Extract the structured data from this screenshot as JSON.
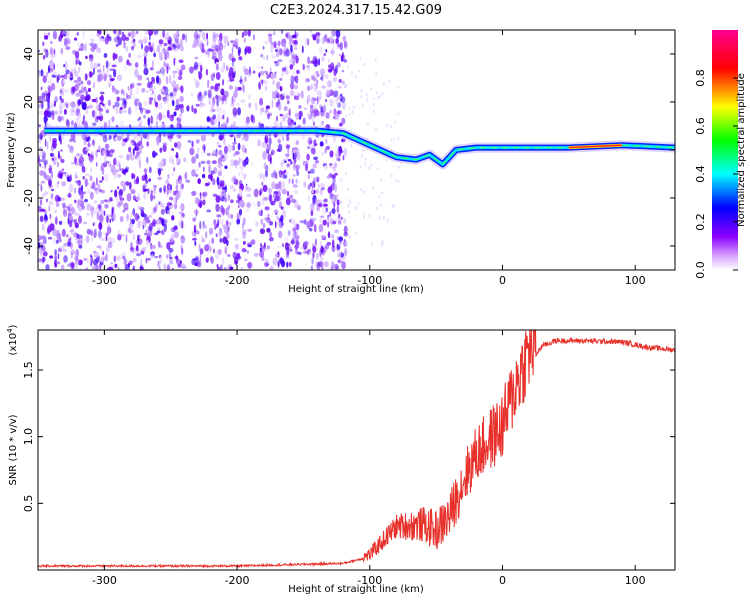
{
  "title": "C2E3.2024.317.15.42.G09",
  "chart_data": [
    {
      "type": "heatmap",
      "xlabel": "Height of straight line (km)",
      "ylabel": "Frequency (Hz)",
      "xlim": [
        -350,
        130
      ],
      "ylim": [
        -50,
        50
      ],
      "x_ticks": [
        "-300",
        "-200",
        "-100",
        "0",
        "100"
      ],
      "y_ticks": [
        "-40",
        "-20",
        "0",
        "20",
        "40"
      ],
      "colorbar": {
        "label": "Normalized spectral amplitude",
        "range": [
          0,
          1
        ],
        "ticks": [
          "0.0",
          "0.2",
          "0.4",
          "0.6",
          "0.8"
        ],
        "colors": [
          "#ffffff",
          "#ff00ff",
          "#0000ff",
          "#00ffff",
          "#00ff00",
          "#ffff00",
          "#ff0000",
          "#ff00a0"
        ]
      },
      "ridge": [
        {
          "x": -345,
          "y": 8
        },
        {
          "x": -240,
          "y": 8
        },
        {
          "x": -140,
          "y": 8
        },
        {
          "x": -120,
          "y": 7
        },
        {
          "x": -100,
          "y": 2
        },
        {
          "x": -80,
          "y": -3
        },
        {
          "x": -65,
          "y": -4
        },
        {
          "x": -55,
          "y": -2
        },
        {
          "x": -45,
          "y": -6
        },
        {
          "x": -35,
          "y": 0
        },
        {
          "x": -20,
          "y": 1
        },
        {
          "x": 0,
          "y": 1
        },
        {
          "x": 50,
          "y": 1
        },
        {
          "x": 90,
          "y": 2
        },
        {
          "x": 130,
          "y": 1
        }
      ]
    },
    {
      "type": "line",
      "xlabel": "Height of straight line (km)",
      "ylabel": "SNR (10 * v/v)",
      "multiplier": "(x10",
      "multiplier_exp": "4",
      "multiplier_close": ")",
      "xlim": [
        -350,
        130
      ],
      "ylim": [
        0,
        1.8
      ],
      "x_ticks": [
        "-300",
        "-200",
        "-100",
        "0",
        "100"
      ],
      "y_ticks": [
        "0.5",
        "1.0",
        "1.5"
      ],
      "series": [
        {
          "color": "#e8302a",
          "points": [
            {
              "x": -350,
              "y": 0.03
            },
            {
              "x": -200,
              "y": 0.03
            },
            {
              "x": -160,
              "y": 0.04
            },
            {
              "x": -120,
              "y": 0.05
            },
            {
              "x": -100,
              "y": 0.1
            },
            {
              "x": -90,
              "y": 0.2
            },
            {
              "x": -80,
              "y": 0.3
            },
            {
              "x": -60,
              "y": 0.3
            },
            {
              "x": -50,
              "y": 0.25
            },
            {
              "x": -40,
              "y": 0.35
            },
            {
              "x": -30,
              "y": 0.6
            },
            {
              "x": -20,
              "y": 0.8
            },
            {
              "x": -10,
              "y": 0.9
            },
            {
              "x": 0,
              "y": 1.0
            },
            {
              "x": 10,
              "y": 1.3
            },
            {
              "x": 20,
              "y": 1.55
            },
            {
              "x": 30,
              "y": 1.68
            },
            {
              "x": 40,
              "y": 1.72
            },
            {
              "x": 60,
              "y": 1.72
            },
            {
              "x": 90,
              "y": 1.71
            },
            {
              "x": 110,
              "y": 1.67
            },
            {
              "x": 130,
              "y": 1.65
            }
          ]
        }
      ]
    }
  ]
}
